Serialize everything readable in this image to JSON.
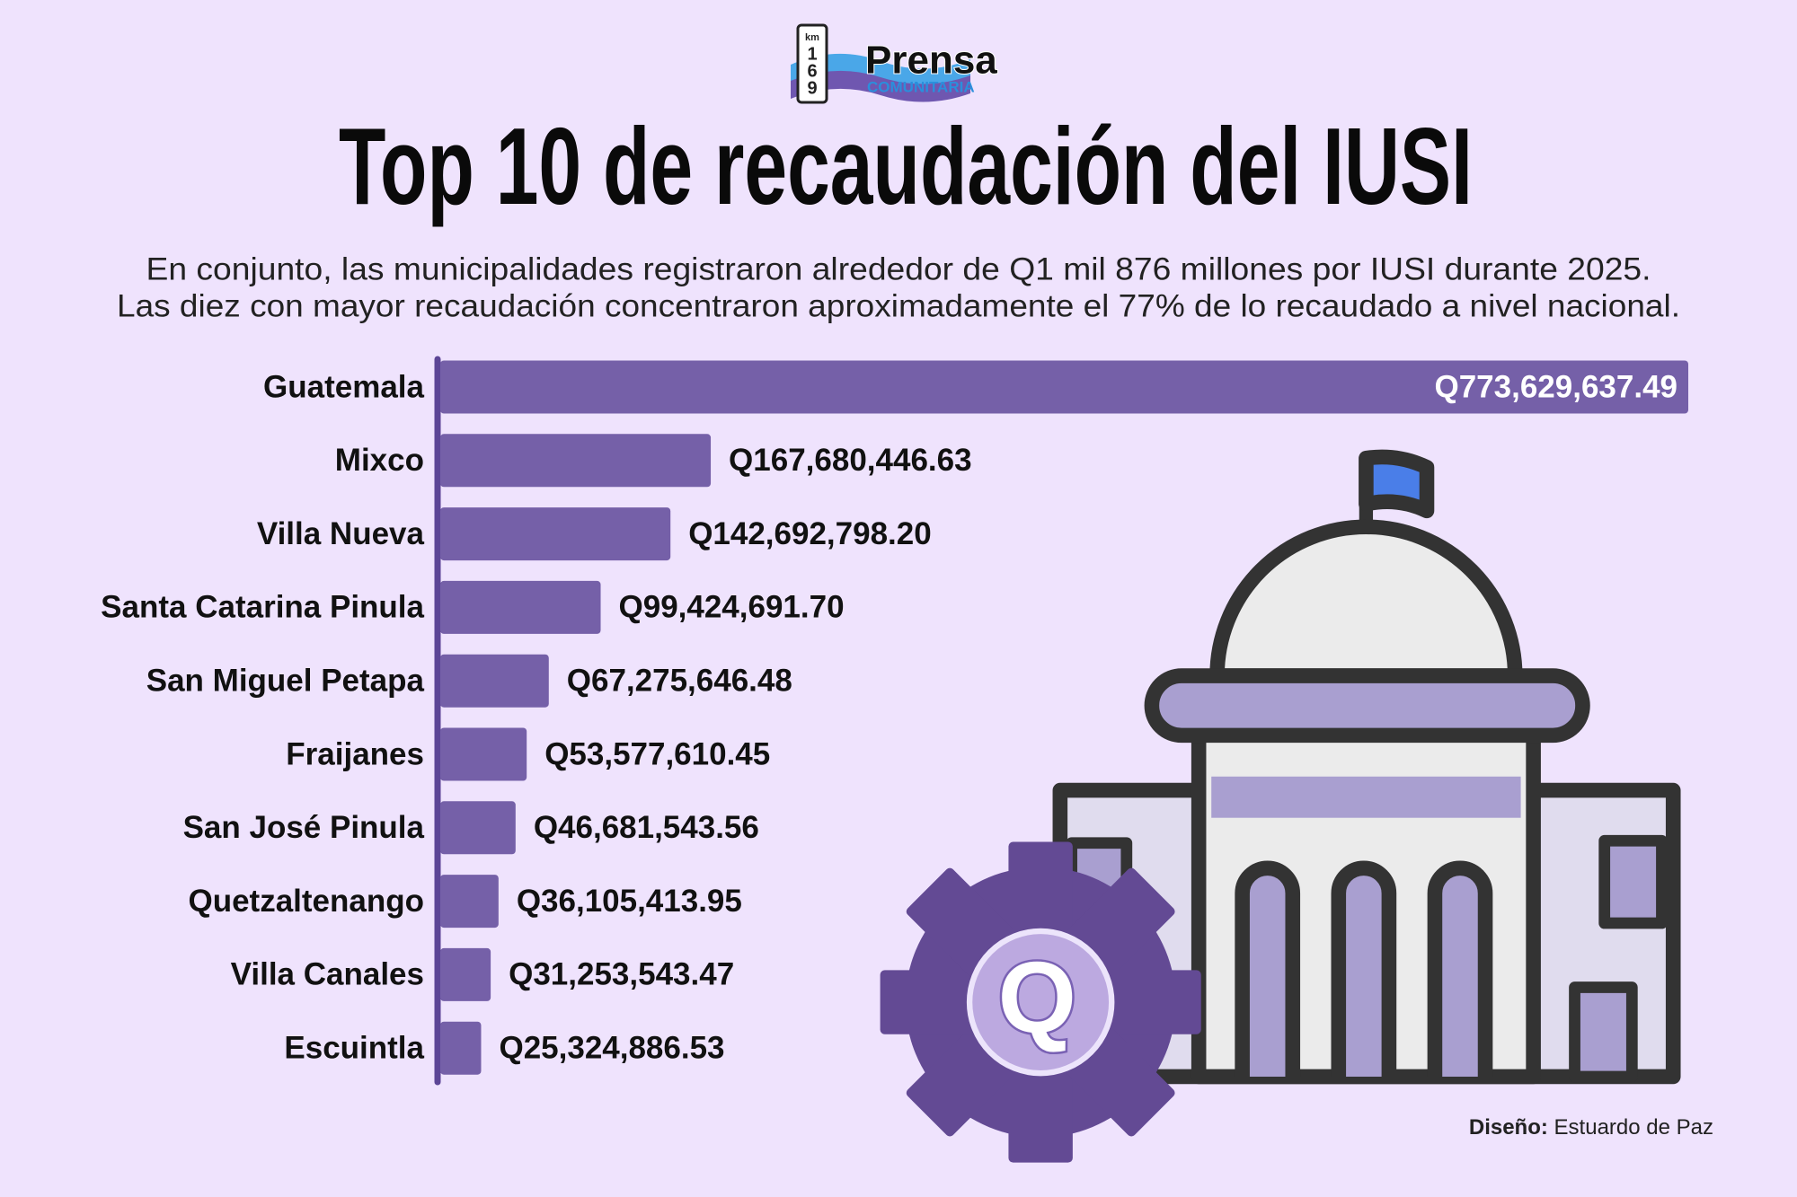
{
  "chart_data": {
    "type": "bar",
    "orientation": "horizontal",
    "logo": {
      "sign": [
        "km",
        "1",
        "6",
        "9"
      ],
      "name": "Prensa",
      "tagline": "COMUNITARIA"
    },
    "title": "Top 10 de recaudación del IUSI",
    "subtitle": [
      "En conjunto, las municipalidades registraron alrededor de Q1 mil 876 millones por IUSI durante 2025.",
      "Las diez con mayor recaudación concentraron aproximadamente el 77% de lo recaudado a nivel nacional."
    ],
    "categories": [
      "Guatemala",
      "Mixco",
      "Villa Nueva",
      "Santa Catarina Pinula",
      "San Miguel Petapa",
      "Fraijanes",
      "San José Pinula",
      "Quetzaltenango",
      "Villa Canales",
      "Escuintla"
    ],
    "values": [
      773629637.49,
      167680446.63,
      142692798.2,
      99424691.7,
      67275646.48,
      53577610.45,
      46681543.56,
      36105413.95,
      31253543.47,
      25324886.53
    ],
    "value_labels": [
      "Q773,629,637.49",
      "Q167,680,446.63",
      "Q142,692,798.20",
      "Q99,424,691.70",
      "Q67,275,646.48",
      "Q53,577,610.45",
      "Q46,681,543.56",
      "Q36,105,413.95",
      "Q31,253,543.47",
      "Q25,324,886.53"
    ],
    "color": "#7560a8",
    "icon_letter": "Q",
    "credit": {
      "label": "Diseño:",
      "name": "Estuardo de Paz"
    }
  }
}
